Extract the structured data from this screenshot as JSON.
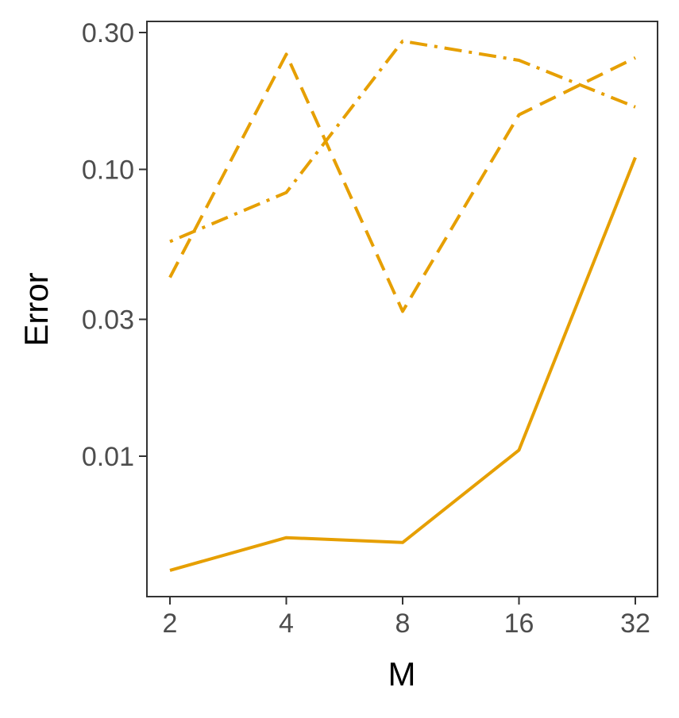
{
  "chart_data": {
    "type": "line",
    "title": "",
    "xlabel": "M",
    "ylabel": "Error",
    "x": [
      2,
      4,
      8,
      16,
      32
    ],
    "x_scale": "log2",
    "x_tick_labels": [
      "2",
      "4",
      "8",
      "16",
      "32"
    ],
    "y_scale": "log10",
    "y_ticks": [
      0.01,
      0.03,
      0.1,
      0.3
    ],
    "y_tick_labels": [
      "0.01",
      "0.03",
      "0.10",
      "0.30"
    ],
    "ylim": [
      0.0039,
      0.32
    ],
    "grid": false,
    "legend": "none",
    "color": "#E69F00",
    "series": [
      {
        "linetype": "solid",
        "values": [
          0.004,
          0.0052,
          0.005,
          0.0105,
          0.11
        ]
      },
      {
        "linetype": "dashed",
        "values": [
          0.042,
          0.252,
          0.032,
          0.155,
          0.245
        ]
      },
      {
        "linetype": "dotdash",
        "values": [
          0.056,
          0.083,
          0.28,
          0.24,
          0.165
        ]
      }
    ]
  }
}
